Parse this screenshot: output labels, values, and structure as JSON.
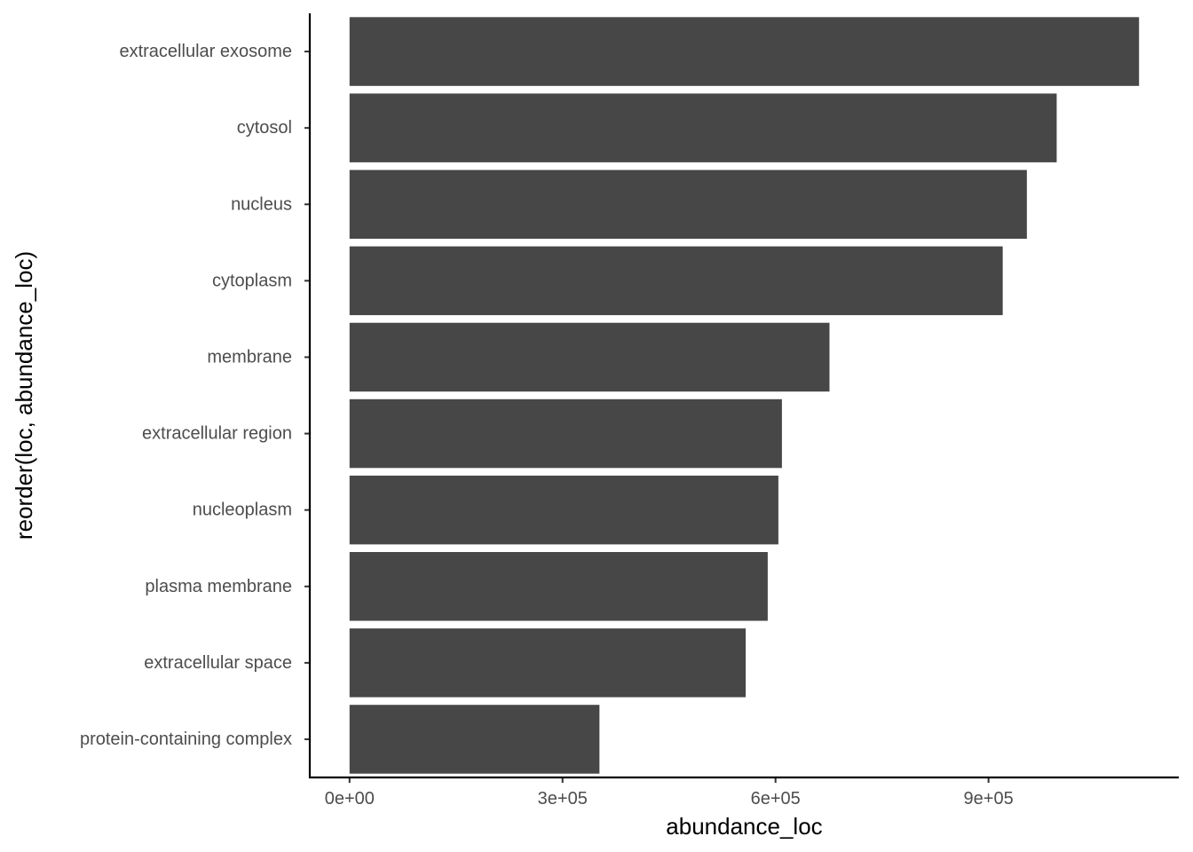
{
  "chart_data": {
    "type": "bar",
    "orientation": "horizontal",
    "xlabel": "abundance_loc",
    "ylabel": "reorder(loc, abundance_loc)",
    "categories": [
      "extracellular exosome",
      "cytosol",
      "nucleus",
      "cytoplasm",
      "membrane",
      "extracellular region",
      "nucleoplasm",
      "plasma membrane",
      "extracellular space",
      "protein-containing complex"
    ],
    "values": [
      1112000,
      996000,
      954000,
      920000,
      676000,
      609000,
      604000,
      589000,
      558000,
      352000
    ],
    "xlim": [
      -56000,
      1168000
    ],
    "x_ticks": [
      0,
      300000,
      600000,
      900000
    ],
    "x_tick_labels": [
      "0e+00",
      "3e+05",
      "6e+05",
      "9e+05"
    ],
    "bar_color": "#474747",
    "grid": false,
    "legend": "none"
  }
}
